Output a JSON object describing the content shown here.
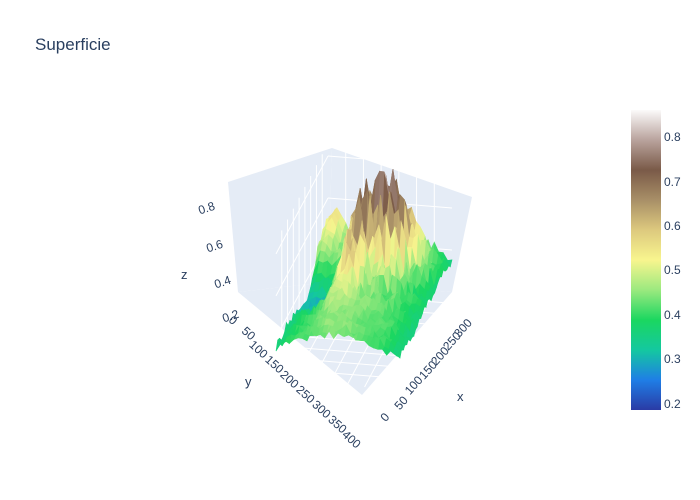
{
  "chart_data": {
    "type": "surface",
    "title": "Superficie",
    "axes": {
      "x": {
        "label": "x",
        "ticks": [
          "0",
          "50",
          "100",
          "150",
          "200",
          "250",
          "300"
        ]
      },
      "y": {
        "label": "y",
        "ticks": [
          "0",
          "50",
          "100",
          "150",
          "200",
          "250",
          "300",
          "350",
          "400"
        ]
      },
      "z": {
        "label": "z",
        "ticks": [
          "0.2",
          "0.4",
          "0.6",
          "0.8"
        ]
      }
    },
    "colorbar": {
      "colorscale": "earth-terrain",
      "range": [
        0.18,
        0.86
      ],
      "ticks": [
        "0.2",
        "0.3",
        "0.4",
        "0.5",
        "0.6",
        "0.7",
        "0.8"
      ],
      "colors": [
        "#2a3ba5",
        "#1f7ee6",
        "#14c8a0",
        "#1bd760",
        "#9be97f",
        "#f8f58e",
        "#ddc97e",
        "#a88f67",
        "#7a5a48",
        "#b9a39d",
        "#fbfafa"
      ]
    },
    "surface": {
      "x_extent": [
        0,
        320
      ],
      "y_extent": [
        0,
        400
      ],
      "z_range": [
        0.18,
        0.86
      ]
    }
  }
}
